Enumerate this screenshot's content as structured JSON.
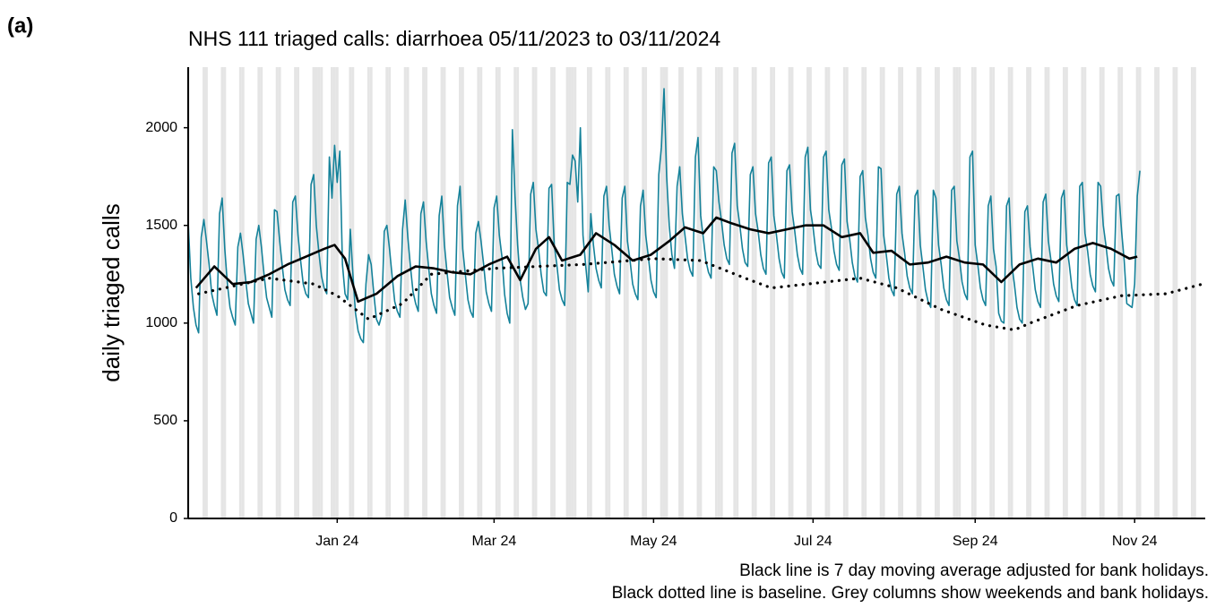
{
  "chart_data": {
    "type": "line",
    "panel_label": "(a)",
    "title": "NHS 111 triaged calls: diarrhoea 05/11/2023 to 03/11/2024",
    "y_label": "daily triaged calls",
    "notes": [
      "Black line is 7 day moving average adjusted for bank holidays.",
      "Black dotted line is baseline. Grey columns show weekends and bank holidays."
    ],
    "xlim": [
      0,
      389
    ],
    "xticks": [
      {
        "value": 57,
        "label": "Jan 24"
      },
      {
        "value": 117,
        "label": "Mar 24"
      },
      {
        "value": 178,
        "label": "May 24"
      },
      {
        "value": 239,
        "label": "Jul 24"
      },
      {
        "value": 301,
        "label": "Sep 24"
      },
      {
        "value": 362,
        "label": "Nov 24"
      }
    ],
    "ylim": [
      0,
      2310
    ],
    "yticks": [
      0,
      500,
      1000,
      1500,
      2000
    ],
    "grid": false,
    "shade_color": "#e5e5e5",
    "shaded_days": [
      0,
      6,
      7,
      13,
      14,
      20,
      21,
      27,
      28,
      34,
      35,
      41,
      42,
      48,
      49,
      55,
      56,
      62,
      63,
      69,
      70,
      76,
      77,
      83,
      84,
      90,
      91,
      97,
      98,
      104,
      105,
      111,
      112,
      118,
      119,
      125,
      126,
      132,
      133,
      139,
      140,
      146,
      147,
      153,
      154,
      160,
      161,
      167,
      168,
      174,
      175,
      181,
      182,
      188,
      189,
      195,
      196,
      202,
      203,
      209,
      210,
      216,
      217,
      223,
      224,
      230,
      231,
      237,
      238,
      244,
      245,
      251,
      252,
      258,
      259,
      265,
      266,
      272,
      273,
      279,
      280,
      286,
      287,
      293,
      294,
      300,
      301,
      307,
      308,
      314,
      315,
      321,
      322,
      328,
      329,
      335,
      336,
      342,
      343,
      349,
      350,
      356,
      357,
      363,
      364,
      370,
      371,
      377,
      378,
      384,
      385,
      50,
      51,
      57,
      145,
      148,
      183,
      204,
      295
    ],
    "series": [
      {
        "color": "#15829a",
        "line_style": "solid",
        "width": 1.6,
        "x": [
          0,
          1,
          2,
          3,
          4,
          5,
          6,
          7,
          8,
          9,
          10,
          11,
          12,
          13,
          14,
          15,
          16,
          17,
          18,
          19,
          20,
          21,
          22,
          23,
          24,
          25,
          26,
          27,
          28,
          29,
          30,
          31,
          32,
          33,
          34,
          35,
          36,
          37,
          38,
          39,
          40,
          41,
          42,
          43,
          44,
          45,
          46,
          47,
          48,
          49,
          50,
          51,
          52,
          53,
          54,
          55,
          56,
          57,
          58,
          59,
          60,
          61,
          62,
          63,
          64,
          65,
          66,
          67,
          68,
          69,
          70,
          71,
          72,
          73,
          74,
          75,
          76,
          77,
          78,
          79,
          80,
          81,
          82,
          83,
          84,
          85,
          86,
          87,
          88,
          89,
          90,
          91,
          92,
          93,
          94,
          95,
          96,
          97,
          98,
          99,
          100,
          101,
          102,
          103,
          104,
          105,
          106,
          107,
          108,
          109,
          110,
          111,
          112,
          113,
          114,
          115,
          116,
          117,
          118,
          119,
          120,
          121,
          122,
          123,
          124,
          125,
          126,
          127,
          128,
          129,
          130,
          131,
          132,
          133,
          134,
          135,
          136,
          137,
          138,
          139,
          140,
          141,
          142,
          143,
          144,
          145,
          146,
          147,
          148,
          149,
          150,
          151,
          152,
          153,
          154,
          155,
          156,
          157,
          158,
          159,
          160,
          161,
          162,
          163,
          164,
          165,
          166,
          167,
          168,
          169,
          170,
          171,
          172,
          173,
          174,
          175,
          176,
          177,
          178,
          179,
          180,
          181,
          182,
          183,
          184,
          185,
          186,
          187,
          188,
          189,
          190,
          191,
          192,
          193,
          194,
          195,
          196,
          197,
          198,
          199,
          200,
          201,
          202,
          203,
          204,
          205,
          206,
          207,
          208,
          209,
          210,
          211,
          212,
          213,
          214,
          215,
          216,
          217,
          218,
          219,
          220,
          221,
          222,
          223,
          224,
          225,
          226,
          227,
          228,
          229,
          230,
          231,
          232,
          233,
          234,
          235,
          236,
          237,
          238,
          239,
          240,
          241,
          242,
          243,
          244,
          245,
          246,
          247,
          248,
          249,
          250,
          251,
          252,
          253,
          254,
          255,
          256,
          257,
          258,
          259,
          260,
          261,
          262,
          263,
          264,
          265,
          266,
          267,
          268,
          269,
          270,
          271,
          272,
          273,
          274,
          275,
          276,
          277,
          278,
          279,
          280,
          281,
          282,
          283,
          284,
          285,
          286,
          287,
          288,
          289,
          290,
          291,
          292,
          293,
          294,
          295,
          296,
          297,
          298,
          299,
          300,
          301,
          302,
          303,
          304,
          305,
          306,
          307,
          308,
          309,
          310,
          311,
          312,
          313,
          314,
          315,
          316,
          317,
          318,
          319,
          320,
          321,
          322,
          323,
          324,
          325,
          326,
          327,
          328,
          329,
          330,
          331,
          332,
          333,
          334,
          335,
          336,
          337,
          338,
          339,
          340,
          341,
          342,
          343,
          344,
          345,
          346,
          347,
          348,
          349,
          350,
          351,
          352,
          353,
          354,
          355,
          356,
          357,
          358,
          359,
          360,
          361,
          362,
          363,
          364
        ],
        "values": [
          1520,
          1230,
          1080,
          990,
          950,
          1440,
          1530,
          1420,
          1300,
          1150,
          1090,
          1040,
          1560,
          1640,
          1380,
          1200,
          1080,
          1030,
          990,
          1390,
          1460,
          1350,
          1220,
          1100,
          1050,
          1000,
          1430,
          1500,
          1390,
          1250,
          1130,
          1080,
          1030,
          1580,
          1570,
          1420,
          1290,
          1170,
          1120,
          1090,
          1620,
          1650,
          1450,
          1320,
          1200,
          1150,
          1130,
          1710,
          1760,
          1500,
          1360,
          1240,
          1180,
          1150,
          1850,
          1640,
          1910,
          1720,
          1880,
          1300,
          1150,
          1120,
          1480,
          1250,
          1050,
          960,
          920,
          900,
          1200,
          1350,
          1300,
          1150,
          1020,
          990,
          1040,
          1470,
          1500,
          1380,
          1240,
          1110,
          1060,
          1030,
          1480,
          1630,
          1440,
          1290,
          1160,
          1100,
          1060,
          1560,
          1620,
          1420,
          1280,
          1150,
          1090,
          1050,
          1550,
          1650,
          1400,
          1260,
          1130,
          1080,
          1040,
          1600,
          1700,
          1380,
          1250,
          1120,
          1060,
          1030,
          1460,
          1520,
          1420,
          1300,
          1160,
          1100,
          1060,
          1590,
          1650,
          1450,
          1340,
          1150,
          1050,
          1000,
          1990,
          1650,
          1400,
          1220,
          1130,
          1070,
          1100,
          1660,
          1720,
          1480,
          1380,
          1250,
          1160,
          1140,
          1690,
          1710,
          1400,
          1300,
          1170,
          1120,
          1090,
          1720,
          1710,
          1860,
          1830,
          1620,
          2000,
          1450,
          1300,
          1160,
          1560,
          1400,
          1280,
          1220,
          1180,
          1650,
          1700,
          1500,
          1380,
          1250,
          1190,
          1150,
          1640,
          1700,
          1420,
          1320,
          1200,
          1150,
          1120,
          1600,
          1680,
          1450,
          1340,
          1220,
          1160,
          1130,
          1760,
          1900,
          2200,
          1750,
          1500,
          1350,
          1280,
          1700,
          1800,
          1560,
          1450,
          1330,
          1270,
          1240,
          1850,
          1950,
          1550,
          1440,
          1320,
          1260,
          1230,
          1800,
          1780,
          1620,
          1520,
          1400,
          1330,
          1300,
          1870,
          1920,
          1600,
          1500,
          1380,
          1310,
          1290,
          1760,
          1800,
          1560,
          1470,
          1350,
          1280,
          1250,
          1820,
          1850,
          1550,
          1450,
          1330,
          1260,
          1230,
          1780,
          1810,
          1570,
          1470,
          1350,
          1280,
          1250,
          1850,
          1900,
          1580,
          1490,
          1370,
          1300,
          1280,
          1850,
          1880,
          1580,
          1490,
          1370,
          1300,
          1270,
          1810,
          1840,
          1520,
          1430,
          1310,
          1240,
          1210,
          1750,
          1780,
          1540,
          1450,
          1330,
          1260,
          1230,
          1800,
          1790,
          1450,
          1350,
          1230,
          1170,
          1140,
          1660,
          1700,
          1460,
          1360,
          1240,
          1180,
          1150,
          1650,
          1680,
          1400,
          1290,
          1170,
          1110,
          1080,
          1680,
          1640,
          1400,
          1300,
          1180,
          1120,
          1090,
          1680,
          1700,
          1420,
          1330,
          1210,
          1150,
          1120,
          1850,
          1880,
          1400,
          1300,
          1180,
          1120,
          1090,
          1600,
          1650,
          1380,
          1290,
          1050,
          1010,
          1000,
          1600,
          1640,
          1300,
          1200,
          1080,
          1020,
          1000,
          1570,
          1600,
          1390,
          1290,
          1170,
          1110,
          1080,
          1620,
          1660,
          1420,
          1320,
          1200,
          1140,
          1110,
          1640,
          1680,
          1400,
          1300,
          1180,
          1120,
          1090,
          1700,
          1720,
          1460,
          1370,
          1250,
          1190,
          1160,
          1720,
          1700,
          1500,
          1400,
          1280,
          1220,
          1190,
          1650,
          1660,
          1470,
          1320,
          1100,
          1090,
          1080,
          1200,
          1650,
          1780
        ]
      },
      {
        "color": "#000000",
        "line_style": "solid",
        "width": 2.6,
        "x": [
          3,
          10,
          17,
          24,
          31,
          38,
          45,
          52,
          56,
          60,
          65,
          72,
          80,
          87,
          94,
          101,
          108,
          115,
          122,
          127,
          133,
          138,
          143,
          150,
          156,
          163,
          170,
          177,
          184,
          190,
          197,
          202,
          208,
          215,
          222,
          229,
          236,
          243,
          250,
          257,
          262,
          269,
          276,
          283,
          290,
          297,
          304,
          311,
          318,
          325,
          332,
          339,
          346,
          353,
          360,
          363
        ],
        "values": [
          1180,
          1290,
          1200,
          1210,
          1250,
          1300,
          1340,
          1380,
          1400,
          1330,
          1110,
          1150,
          1240,
          1290,
          1280,
          1260,
          1250,
          1300,
          1340,
          1220,
          1380,
          1440,
          1320,
          1350,
          1460,
          1400,
          1320,
          1350,
          1420,
          1490,
          1460,
          1540,
          1510,
          1480,
          1460,
          1480,
          1500,
          1500,
          1440,
          1460,
          1360,
          1370,
          1300,
          1310,
          1340,
          1310,
          1300,
          1210,
          1300,
          1330,
          1310,
          1380,
          1410,
          1380,
          1330,
          1340
        ]
      },
      {
        "color": "#000000",
        "line_style": "dotted",
        "width": 2.6,
        "x": [
          4,
          31,
          48,
          57,
          69,
          82,
          93,
          117,
          151,
          178,
          196,
          213,
          223,
          237,
          257,
          271,
          288,
          305,
          316,
          322,
          340,
          357,
          374,
          388
        ],
        "values": [
          1150,
          1230,
          1200,
          1140,
          1020,
          1100,
          1250,
          1280,
          1300,
          1330,
          1320,
          1230,
          1180,
          1200,
          1230,
          1180,
          1070,
          990,
          965,
          1000,
          1090,
          1140,
          1150,
          1200
        ]
      }
    ]
  }
}
